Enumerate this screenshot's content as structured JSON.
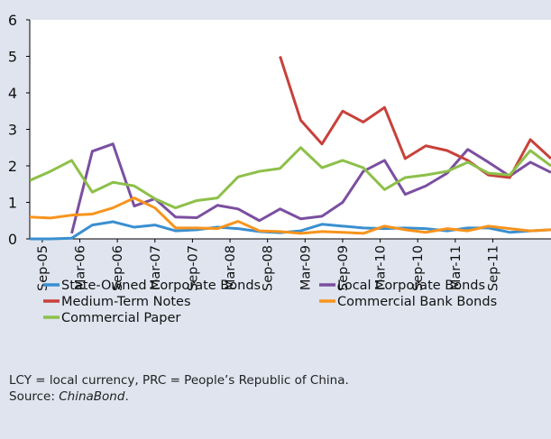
{
  "chart_data": {
    "type": "line",
    "x": [
      -2,
      1.3,
      4.7,
      8,
      11.3,
      14.7,
      18,
      21.3,
      24.7,
      28,
      31.3,
      34.7,
      38,
      41.3,
      44.7,
      48,
      51.3,
      54.7,
      58,
      61.3,
      64.7,
      68,
      71.3,
      74.7,
      78,
      81.3
    ],
    "xlim": [
      -2,
      81.3
    ],
    "xticks": [
      {
        "value": 0,
        "label": "Sep-05"
      },
      {
        "value": 6,
        "label": "Mar-06"
      },
      {
        "value": 12,
        "label": "Sep-06"
      },
      {
        "value": 18,
        "label": "Mar-07"
      },
      {
        "value": 24,
        "label": "Sep-07"
      },
      {
        "value": 30,
        "label": "Mar-08"
      },
      {
        "value": 36,
        "label": "Sep-08"
      },
      {
        "value": 42,
        "label": "Mar-09"
      },
      {
        "value": 48,
        "label": "Sep-09"
      },
      {
        "value": 54,
        "label": "Mar-10"
      },
      {
        "value": 60,
        "label": "Sep-10"
      },
      {
        "value": 66,
        "label": "Mar-11"
      },
      {
        "value": 72,
        "label": "Sep-11"
      }
    ],
    "ylim": [
      0,
      6
    ],
    "yticks": [
      0,
      1,
      2,
      3,
      4,
      5,
      6
    ],
    "series": [
      {
        "name": "State-Owned Corporate Bonds",
        "color": "#3a8fd0",
        "values": [
          0,
          0,
          0.02,
          0.38,
          0.47,
          0.32,
          0.38,
          0.22,
          0.25,
          0.32,
          0.28,
          0.2,
          0.17,
          0.22,
          0.4,
          0.35,
          0.3,
          0.28,
          0.3,
          0.28,
          0.22,
          0.3,
          0.3,
          0.18,
          0.22,
          0.25
        ]
      },
      {
        "name": "Local Corporate Bonds",
        "color": "#7b4fa0",
        "values": [
          null,
          null,
          0.15,
          2.4,
          2.6,
          0.9,
          1.1,
          0.6,
          0.58,
          0.92,
          0.82,
          0.5,
          0.82,
          0.55,
          0.62,
          1.0,
          1.85,
          2.15,
          1.22,
          1.45,
          1.8,
          2.45,
          2.1,
          1.72,
          2.1,
          1.82
        ]
      },
      {
        "name": "Medium-Term Notes",
        "color": "#c8413b",
        "values": [
          null,
          null,
          null,
          null,
          null,
          null,
          null,
          null,
          null,
          null,
          null,
          null,
          5.0,
          3.25,
          2.6,
          3.5,
          3.2,
          3.6,
          2.2,
          2.55,
          2.42,
          2.15,
          1.75,
          1.68,
          2.72,
          2.2
        ]
      },
      {
        "name": "Commercial Bank Bonds",
        "color": "#f7941d",
        "values": [
          0.6,
          0.57,
          0.65,
          0.68,
          0.85,
          1.12,
          0.85,
          0.3,
          0.3,
          0.28,
          0.48,
          0.22,
          0.2,
          0.15,
          0.2,
          0.18,
          0.15,
          0.35,
          0.25,
          0.18,
          0.28,
          0.22,
          0.35,
          0.28,
          0.22,
          0.25
        ]
      },
      {
        "name": "Commercial Paper",
        "color": "#8dc04a",
        "values": [
          1.6,
          1.85,
          2.15,
          1.28,
          1.55,
          1.45,
          1.1,
          0.85,
          1.05,
          1.12,
          1.7,
          1.85,
          1.93,
          2.5,
          1.95,
          2.15,
          1.95,
          1.35,
          1.68,
          1.75,
          1.85,
          2.1,
          1.8,
          1.75,
          2.42,
          2.0
        ]
      }
    ],
    "notes": [
      "LCY = local currency, PRC = People’s Republic of China."
    ],
    "source": {
      "label": "Source: ",
      "name": "ChinaBond",
      "end": "."
    }
  }
}
